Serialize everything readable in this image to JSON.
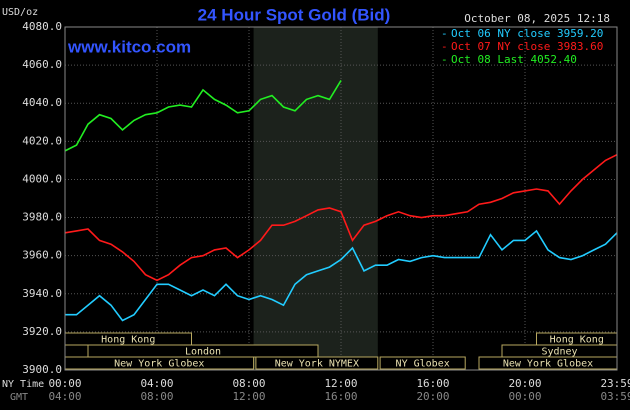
{
  "chart_data": {
    "type": "line",
    "title": "24 Hour Spot Gold (Bid)",
    "unit_label": "USD/oz",
    "site": "www.kitco.com",
    "timestamp": "October 08, 2025 12:18",
    "x_axis_label": "NY Time",
    "x2_axis_label": "GMT",
    "x": [
      0,
      0.5,
      1,
      1.5,
      2,
      2.5,
      3,
      3.5,
      4,
      4.5,
      5,
      5.5,
      6,
      6.5,
      7,
      7.5,
      8,
      8.5,
      9,
      9.5,
      10,
      10.5,
      11,
      11.5,
      12,
      12.5,
      13,
      13.5,
      14,
      14.5,
      15,
      15.5,
      16,
      16.5,
      17,
      17.5,
      18,
      18.5,
      19,
      19.5,
      20,
      20.5,
      21,
      21.5,
      22,
      22.5,
      23,
      23.5,
      24
    ],
    "series": [
      {
        "name": "Oct 06 NY close 3959.20",
        "color": "#22ccff",
        "values": [
          3929,
          3929,
          3934,
          3939,
          3934,
          3926,
          3929,
          3937,
          3945,
          3945,
          3942,
          3939,
          3942,
          3939,
          3945,
          3939,
          3937,
          3939,
          3937,
          3934,
          3945,
          3950,
          3952,
          3954,
          3958,
          3964,
          3952,
          3955,
          3955,
          3958,
          3957,
          3959,
          3960,
          3959,
          3959,
          3959,
          3959,
          3971,
          3963,
          3968,
          3968,
          3973,
          3963,
          3959,
          3958,
          3960,
          3963,
          3966,
          3972
        ]
      },
      {
        "name": "Oct 07 NY close 3983.60",
        "color": "#ff1a1a",
        "values": [
          3972,
          3973,
          3974,
          3968,
          3966,
          3962,
          3957,
          3950,
          3947,
          3950,
          3955,
          3959,
          3960,
          3963,
          3964,
          3959,
          3963,
          3968,
          3976,
          3976,
          3978,
          3981,
          3984,
          3985,
          3983,
          3968,
          3976,
          3978,
          3981,
          3983,
          3981,
          3980,
          3981,
          3981,
          3982,
          3983,
          3987,
          3988,
          3990,
          3993,
          3994,
          3995,
          3994,
          3987,
          3994,
          4000,
          4005,
          4010,
          4013
        ]
      },
      {
        "name": "Oct 08 Last 4052.40",
        "color": "#22ee22",
        "values": [
          4015,
          4018,
          4029,
          4034,
          4032,
          4026,
          4031,
          4034,
          4035,
          4038,
          4039,
          4038,
          4047,
          4042,
          4039,
          4035,
          4036,
          4042,
          4044,
          4038,
          4036,
          4042,
          4044,
          4042,
          4052,
          null,
          null,
          null,
          null,
          null,
          null,
          null,
          null,
          null,
          null,
          null,
          null,
          null,
          null,
          null,
          null,
          null,
          null,
          null,
          null,
          null,
          null,
          null,
          null
        ]
      }
    ],
    "xlim": [
      0,
      24
    ],
    "xticks": [
      {
        "value": 0,
        "label": "00:00"
      },
      {
        "value": 4,
        "label": "04:00"
      },
      {
        "value": 8,
        "label": "08:00"
      },
      {
        "value": 12,
        "label": "12:00"
      },
      {
        "value": 16,
        "label": "16:00"
      },
      {
        "value": 20,
        "label": "20:00"
      },
      {
        "value": 24,
        "label": "23:59"
      }
    ],
    "x2_labels": [
      "04:00",
      "08:00",
      "12:00",
      "16:00",
      "20:00",
      "00:00",
      "03:59"
    ],
    "ylim": [
      3900,
      4080
    ],
    "yticks": [
      {
        "value": 3900,
        "label": "3900.0"
      },
      {
        "value": 3920,
        "label": "3920.0"
      },
      {
        "value": 3940,
        "label": "3940.0"
      },
      {
        "value": 3960,
        "label": "3960.0"
      },
      {
        "value": 3980,
        "label": "3980.0"
      },
      {
        "value": 4000,
        "label": "4000.0"
      },
      {
        "value": 4020,
        "label": "4020.0"
      },
      {
        "value": 4040,
        "label": "4040.0"
      },
      {
        "value": 4060,
        "label": "4060.0"
      },
      {
        "value": 4080,
        "label": "4080.0"
      }
    ],
    "grid": true,
    "highlight": {
      "start": 8.2,
      "end": 13.6
    },
    "session_rows": [
      [
        {
          "label": "Hong Kong",
          "start": 0,
          "end": 5.5
        },
        {
          "label": "Hong Kong",
          "start": 20.5,
          "end": 24
        }
      ],
      [
        {
          "label": "London",
          "start": 1,
          "end": 11
        },
        {
          "label": "Sydney",
          "start": 19,
          "end": 24
        }
      ],
      [
        {
          "label": "New York Globex",
          "start": 0,
          "end": 8.2
        },
        {
          "label": "New York NYMEX",
          "start": 8.3,
          "end": 13.6
        },
        {
          "label": "NY Globex",
          "start": 13.7,
          "end": 17.4
        },
        {
          "label": "New York Globex",
          "start": 18,
          "end": 24
        }
      ]
    ]
  }
}
